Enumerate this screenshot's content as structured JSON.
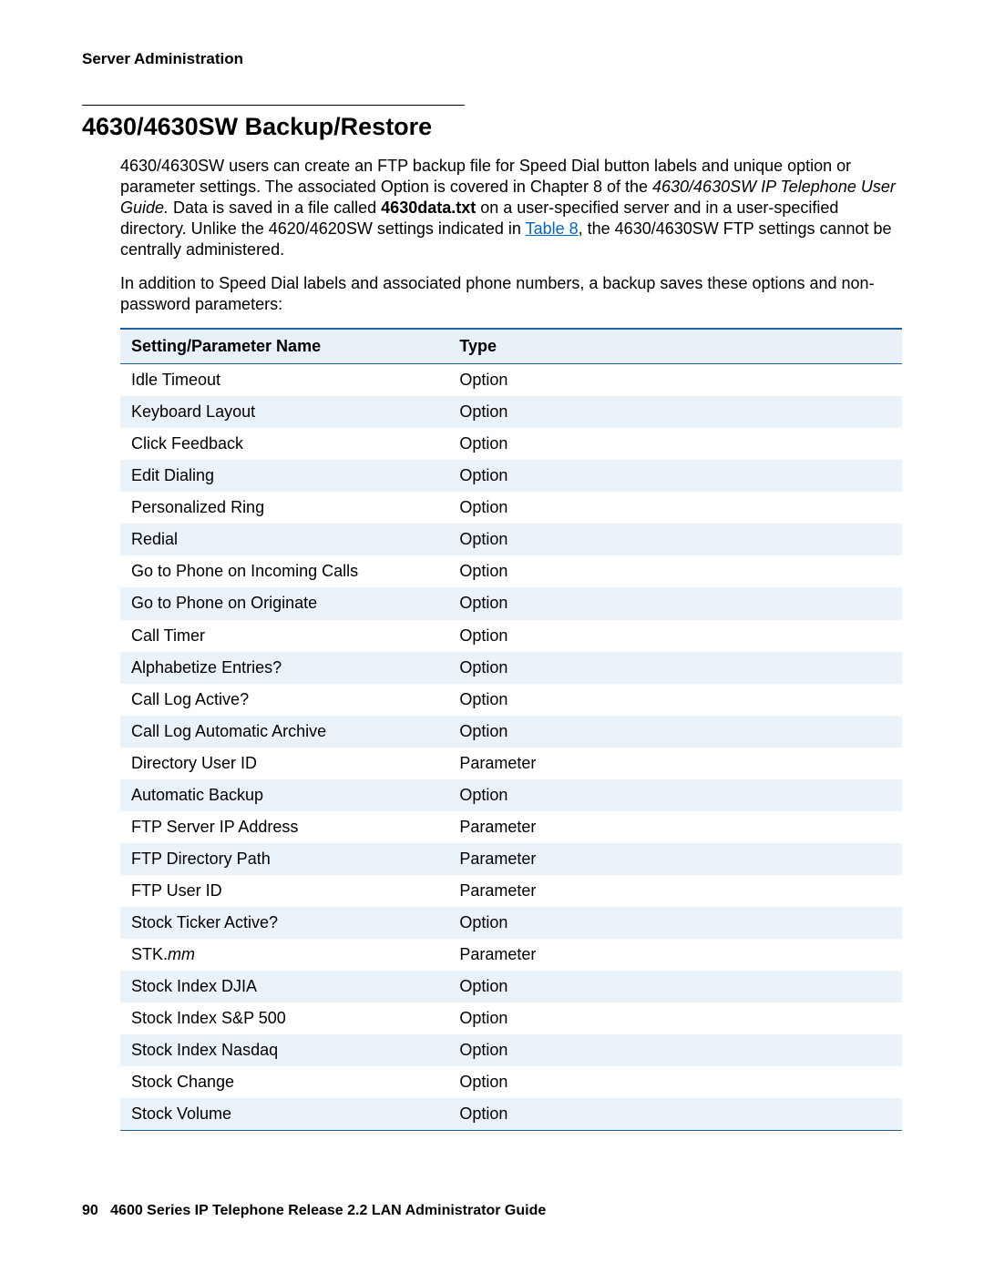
{
  "header": {
    "section_label": "Server Administration"
  },
  "section": {
    "title": "4630/4630SW Backup/Restore",
    "para1_a": "4630/4630SW users can create an FTP backup file for Speed Dial button labels and unique option or parameter settings. The associated Option is covered in Chapter 8 of the ",
    "para1_italic": "4630/4630SW IP Telephone User Guide.",
    "para1_b": " Data is saved in a file called ",
    "para1_bold": "4630data.txt",
    "para1_c": " on a user-specified server and in a user-specified directory. Unlike the 4620/4620SW settings indicated in ",
    "para1_link": "Table 8",
    "para1_d": ", the 4630/4630SW FTP settings cannot be centrally administered.",
    "para2": "In addition to Speed Dial labels and associated phone numbers, a backup saves these options and non-password parameters:"
  },
  "table": {
    "header_bg": "#e8f0f8",
    "alt_row_bg": "#eaf2fa",
    "border_color": "#2060a0",
    "link_color": "#0066cc",
    "columns": [
      "Setting/Parameter Name",
      "Type"
    ],
    "rows": [
      {
        "name": "Idle Timeout",
        "type": "Option",
        "italic_name": false
      },
      {
        "name": "Keyboard Layout",
        "type": "Option",
        "italic_name": false
      },
      {
        "name": "Click Feedback",
        "type": "Option",
        "italic_name": false
      },
      {
        "name": "Edit Dialing",
        "type": "Option",
        "italic_name": false
      },
      {
        "name": "Personalized Ring",
        "type": "Option",
        "italic_name": false
      },
      {
        "name": "Redial",
        "type": "Option",
        "italic_name": false
      },
      {
        "name": "Go to Phone on Incoming Calls",
        "type": "Option",
        "italic_name": false
      },
      {
        "name": "Go to Phone on Originate",
        "type": "Option",
        "italic_name": false
      },
      {
        "name": "Call Timer",
        "type": "Option",
        "italic_name": false
      },
      {
        "name": "Alphabetize Entries?",
        "type": "Option",
        "italic_name": false
      },
      {
        "name": "Call Log Active?",
        "type": "Option",
        "italic_name": false
      },
      {
        "name": "Call Log Automatic Archive",
        "type": "Option",
        "italic_name": false
      },
      {
        "name": "Directory User ID",
        "type": "Parameter",
        "italic_name": false
      },
      {
        "name": "Automatic Backup",
        "type": "Option",
        "italic_name": false
      },
      {
        "name": "FTP Server IP Address",
        "type": "Parameter",
        "italic_name": false
      },
      {
        "name": "FTP Directory Path",
        "type": "Parameter",
        "italic_name": false
      },
      {
        "name": "FTP User ID",
        "type": "Parameter",
        "italic_name": false
      },
      {
        "name": "Stock Ticker Active?",
        "type": "Option",
        "italic_name": false
      },
      {
        "name_prefix": "STK.",
        "name_italic": "mm",
        "type": "Parameter",
        "italic_name": true
      },
      {
        "name": "Stock Index DJIA",
        "type": "Option",
        "italic_name": false
      },
      {
        "name": "Stock Index S&P 500",
        "type": "Option",
        "italic_name": false
      },
      {
        "name": "Stock Index Nasdaq",
        "type": "Option",
        "italic_name": false
      },
      {
        "name": "Stock Change",
        "type": "Option",
        "italic_name": false
      },
      {
        "name": "Stock Volume",
        "type": "Option",
        "italic_name": false
      }
    ]
  },
  "footer": {
    "page_number": "90",
    "doc_title": "4600 Series IP Telephone Release 2.2 LAN Administrator Guide"
  }
}
